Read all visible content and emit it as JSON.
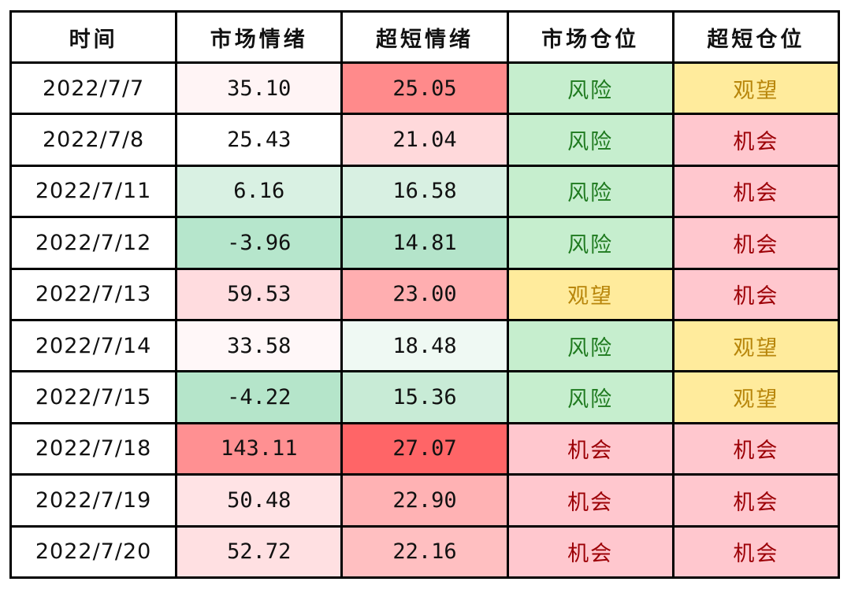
{
  "chart_data": {
    "type": "table",
    "columns": [
      "时间",
      "市场情绪",
      "超短情绪",
      "市场仓位",
      "超短仓位"
    ],
    "rows": [
      [
        "2022/7/7",
        "35.10",
        "25.05",
        "风险",
        "观望"
      ],
      [
        "2022/7/8",
        "25.43",
        "21.04",
        "风险",
        "机会"
      ],
      [
        "2022/7/11",
        "6.16",
        "16.58",
        "风险",
        "机会"
      ],
      [
        "2022/7/12",
        "-3.96",
        "14.81",
        "风险",
        "机会"
      ],
      [
        "2022/7/13",
        "59.53",
        "23.00",
        "观望",
        "机会"
      ],
      [
        "2022/7/14",
        "33.58",
        "18.48",
        "风险",
        "观望"
      ],
      [
        "2022/7/15",
        "-4.22",
        "15.36",
        "风险",
        "观望"
      ],
      [
        "2022/7/18",
        "143.11",
        "27.07",
        "机会",
        "机会"
      ],
      [
        "2022/7/19",
        "50.48",
        "22.90",
        "机会",
        "机会"
      ],
      [
        "2022/7/20",
        "52.72",
        "22.16",
        "机会",
        "机会"
      ]
    ],
    "cell_colors": [
      [
        "#ffffff",
        "#fff4f5",
        "#ff8a8b",
        "#c6eece",
        "#ffeb9c"
      ],
      [
        "#ffffff",
        "#ffffff",
        "#ffd9db",
        "#c6eece",
        "#ffc7ce"
      ],
      [
        "#ffffff",
        "#d9f1e3",
        "#d8f0e2",
        "#c6eece",
        "#ffc7ce"
      ],
      [
        "#ffffff",
        "#b6e6cc",
        "#b4e4ca",
        "#c6eece",
        "#ffc7ce"
      ],
      [
        "#ffffff",
        "#ffdcdf",
        "#ffaeb0",
        "#ffeb9c",
        "#ffc7ce"
      ],
      [
        "#ffffff",
        "#fff7f8",
        "#eff9f3",
        "#c6eece",
        "#ffeb9c"
      ],
      [
        "#ffffff",
        "#b5e5ca",
        "#c8ebd6",
        "#c6eece",
        "#ffeb9c"
      ],
      [
        "#ffffff",
        "#ff9092",
        "#ff6567",
        "#ffc7ce",
        "#ffc7ce"
      ],
      [
        "#ffffff",
        "#ffe3e5",
        "#ffb2b4",
        "#ffc7ce",
        "#ffc7ce"
      ],
      [
        "#ffffff",
        "#ffe0e2",
        "#ffbfc1",
        "#ffc7ce",
        "#ffc7ce"
      ]
    ],
    "text_colors": {
      "风险": "#1f7a1f",
      "观望": "#b8860b",
      "机会": "#9c0006",
      "default": "#111111"
    }
  }
}
